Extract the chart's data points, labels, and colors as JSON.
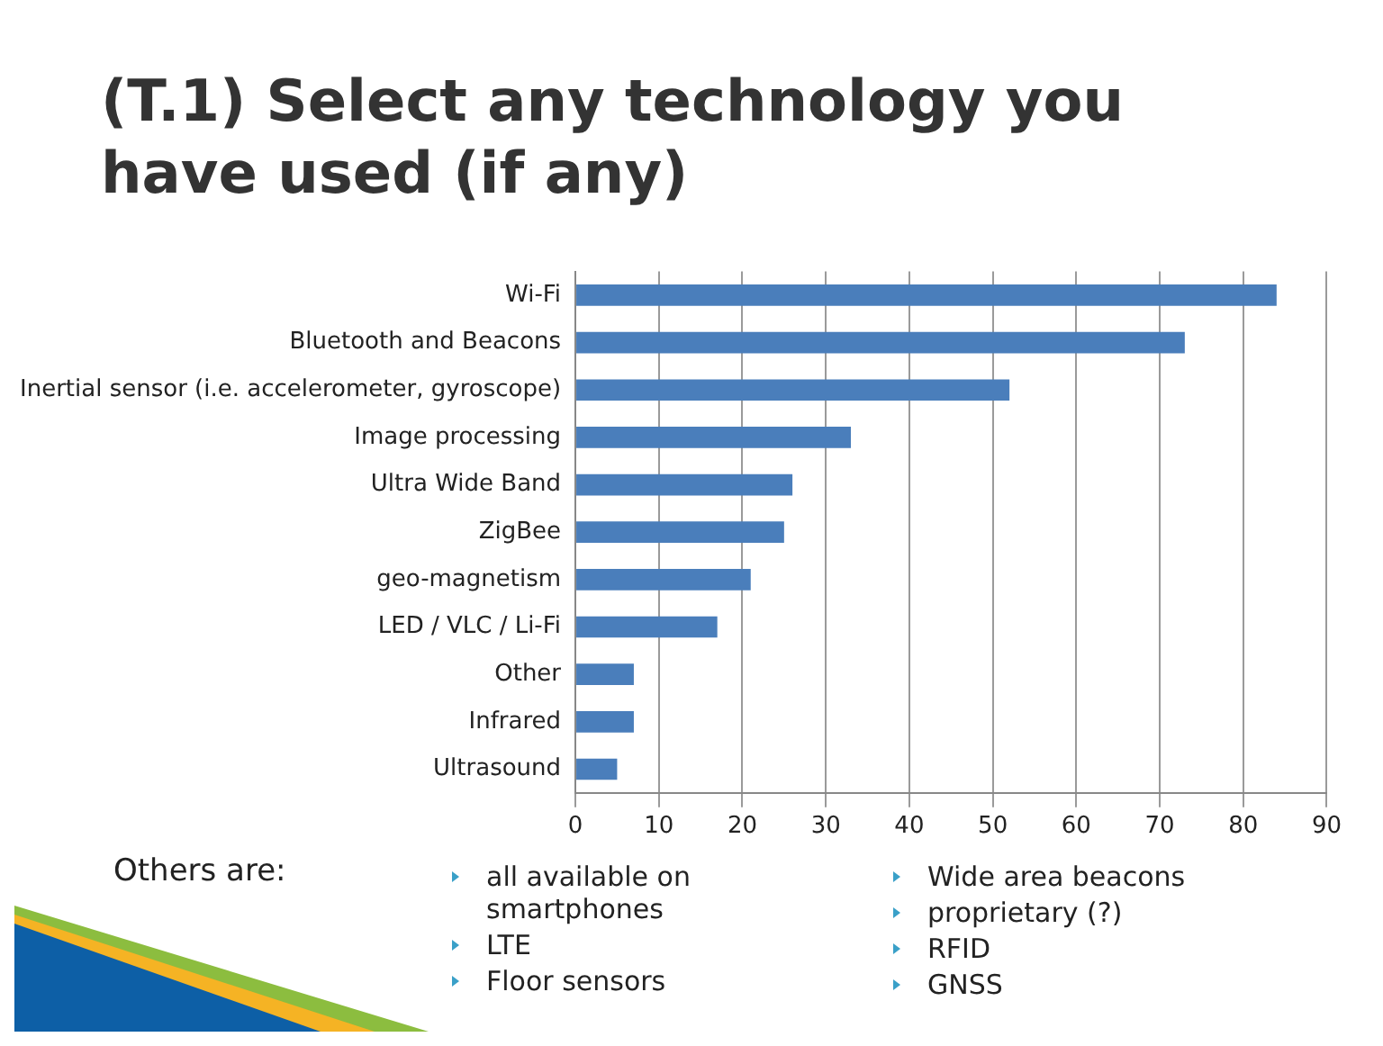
{
  "chart_data": {
    "type": "bar",
    "orientation": "horizontal",
    "title": "(T.1) Select any technology you have used (if any)",
    "categories": [
      "Wi-Fi",
      "Bluetooth and Beacons",
      "Inertial sensor (i.e. accelerometer, gyroscope)",
      "Image processing",
      "Ultra Wide Band",
      "ZigBee",
      "geo-magnetism",
      "LED / VLC / Li-Fi",
      "Other",
      "Infrared",
      "Ultrasound"
    ],
    "values": [
      84,
      73,
      52,
      33,
      26,
      25,
      21,
      17,
      7,
      7,
      5
    ],
    "color": "#4a7ebb",
    "xlim": [
      0,
      90
    ],
    "xticks": [
      0,
      10,
      20,
      30,
      40,
      50,
      60,
      70,
      80,
      90
    ],
    "grid": "x",
    "legend": false,
    "annotations": [
      "Others are:",
      "all available on smartphones",
      "LTE",
      "Floor sensors",
      "Wide area beacons",
      "proprietary (?)",
      "RFID",
      "GNSS"
    ]
  }
}
